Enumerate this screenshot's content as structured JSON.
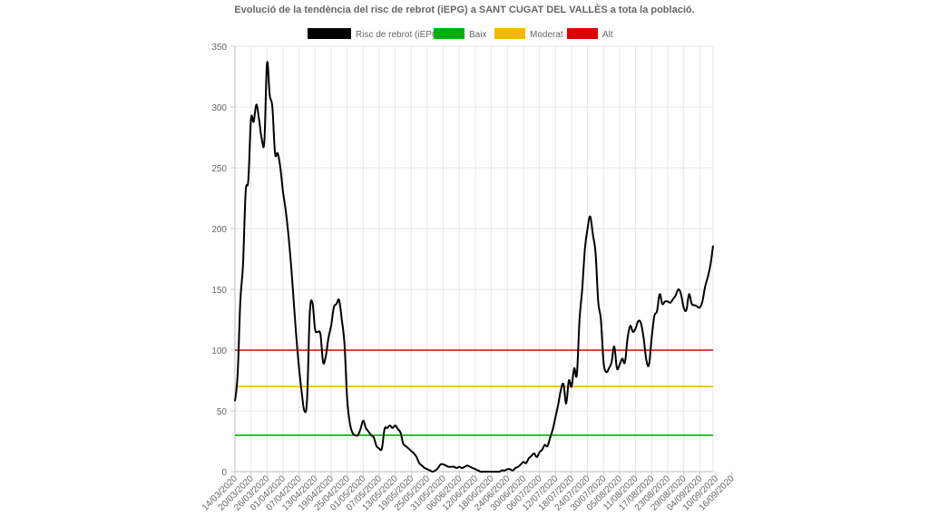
{
  "chart_data": {
    "type": "line",
    "title": "Evolució de la tendència del risc de rebrot (iEPG) a SANT CUGAT DEL VALLÈS a tota la població.",
    "xlabel": "",
    "ylabel": "",
    "ylim": [
      0,
      350
    ],
    "y_ticks": [
      0,
      50,
      100,
      150,
      200,
      250,
      300,
      350
    ],
    "grid": true,
    "legend_position": "top-center",
    "x_tick_labels": [
      "14/03/2020",
      "20/03/2020",
      "26/03/2020",
      "01/04/2020",
      "07/04/2020",
      "13/04/2020",
      "19/04/2020",
      "25/04/2020",
      "01/05/2020",
      "07/05/2020",
      "13/05/2020",
      "19/05/2020",
      "25/05/2020",
      "31/05/2020",
      "06/06/2020",
      "12/06/2020",
      "18/06/2020",
      "24/06/2020",
      "30/06/2020",
      "06/07/2020",
      "12/07/2020",
      "18/07/2020",
      "24/07/2020",
      "30/07/2020",
      "05/08/2020",
      "11/08/2020",
      "17/08/2020",
      "23/08/2020",
      "29/08/2020",
      "04/09/2020",
      "10/09/2020",
      "16/09/2020"
    ],
    "series": [
      {
        "name": "Risc de rebrot (iEPG)",
        "color": "#000000",
        "day_offset_start": 0,
        "values": [
          58,
          80,
          140,
          170,
          230,
          240,
          290,
          288,
          302,
          290,
          274,
          272,
          336,
          310,
          300,
          262,
          262,
          250,
          230,
          215,
          195,
          170,
          140,
          110,
          85,
          65,
          50,
          60,
          130,
          139,
          117,
          115,
          113,
          90,
          95,
          110,
          120,
          135,
          138,
          141,
          125,
          105,
          60,
          40,
          32,
          30,
          30,
          35,
          42,
          36,
          33,
          30,
          28,
          21,
          19,
          19,
          35,
          36,
          38,
          36,
          38,
          35,
          32,
          23,
          21,
          19,
          17,
          15,
          12,
          7,
          5,
          3,
          2,
          1,
          0,
          1,
          3,
          6,
          6,
          5,
          4,
          4,
          4,
          3,
          4,
          3,
          4,
          5,
          4,
          3,
          2,
          1,
          0,
          0,
          0,
          0,
          0,
          0,
          0,
          0,
          1,
          1,
          2,
          2,
          1,
          3,
          4,
          6,
          8,
          7,
          11,
          13,
          15,
          12,
          16,
          18,
          22,
          21,
          28,
          35,
          45,
          55,
          67,
          72,
          56,
          75,
          70,
          85,
          80,
          125,
          150,
          183,
          200,
          210,
          195,
          180,
          140,
          125,
          90,
          82,
          85,
          90,
          103,
          85,
          88,
          93,
          90,
          110,
          120,
          115,
          118,
          124,
          122,
          110,
          92,
          88,
          110,
          128,
          132,
          146,
          138,
          140,
          140,
          139,
          142,
          145,
          150,
          146,
          135,
          133,
          146,
          138,
          137,
          136,
          135,
          140,
          152,
          160,
          170,
          186
        ]
      },
      {
        "name": "Baix",
        "color": "#00b000",
        "values": [
          30
        ]
      },
      {
        "name": "Moderat",
        "color": "#f5b800",
        "values": [
          70
        ]
      },
      {
        "name": "Alt",
        "color": "#e00000",
        "values": [
          100
        ]
      }
    ]
  }
}
